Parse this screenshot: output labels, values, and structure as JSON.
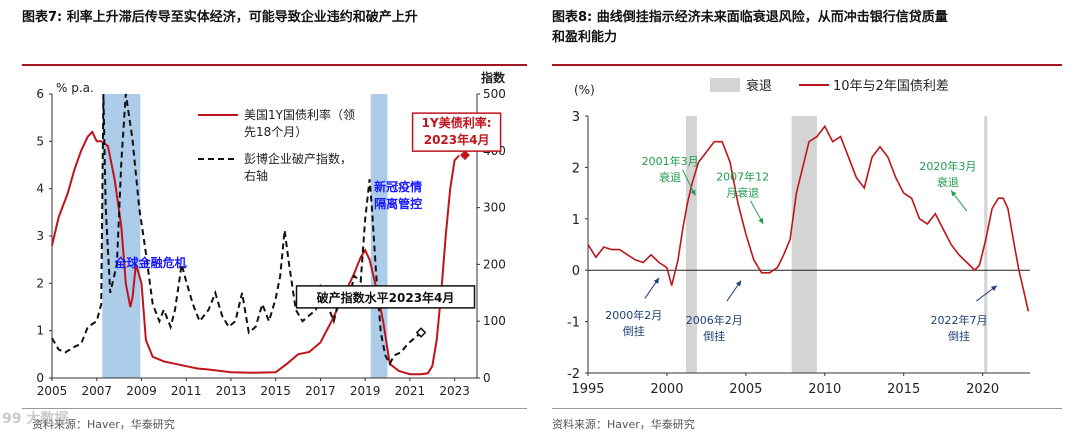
{
  "left": {
    "title": "图表7:  利率上升滞后传导至实体经济，可能导致企业违约和破产上升",
    "source": "资料来源：Haver，华泰研究",
    "watermark": "99 大数据",
    "chart_data": {
      "type": "line",
      "ylabel_left": "% p.a.",
      "ylabel_right": "指数",
      "ylim_left": [
        0,
        6
      ],
      "ylim_right": [
        0,
        500
      ],
      "yticks_left": [
        "0",
        "1",
        "2",
        "3",
        "4",
        "5",
        "6"
      ],
      "yticks_right": [
        "0",
        "100",
        "200",
        "300",
        "400",
        "500"
      ],
      "xlim": [
        2005,
        2024
      ],
      "xticks": [
        "2005",
        "2007",
        "2009",
        "2011",
        "2013",
        "2015",
        "2017",
        "2019",
        "2021",
        "2023"
      ],
      "shaded_periods": [
        [
          2007.25,
          2008.95
        ],
        [
          2019.25,
          2020.0
        ]
      ],
      "series": [
        {
          "name": "美国1Y国债利率（领先18个月）",
          "axis": "left",
          "color": "#c0141c",
          "x": [
            2005.0,
            2005.3,
            2005.7,
            2006.0,
            2006.3,
            2006.6,
            2006.8,
            2007.0,
            2007.2,
            2007.35,
            2007.5,
            2007.8,
            2008.1,
            2008.3,
            2008.5,
            2008.6,
            2008.75,
            2009.0,
            2009.2,
            2009.5,
            2010.0,
            2010.5,
            2011.0,
            2011.5,
            2012.0,
            2012.5,
            2013.0,
            2014.0,
            2015.0,
            2015.5,
            2016.0,
            2016.5,
            2017.0,
            2017.5,
            2018.0,
            2018.5,
            2018.8,
            2019.0,
            2019.2,
            2019.5,
            2019.8,
            2020.1,
            2020.5,
            2021.0,
            2021.5,
            2021.8,
            2022.0,
            2022.2,
            2022.4,
            2022.6,
            2022.8,
            2023.0,
            2023.2
          ],
          "values": [
            2.8,
            3.4,
            3.9,
            4.4,
            4.8,
            5.1,
            5.2,
            5.0,
            5.0,
            4.95,
            4.9,
            4.2,
            3.2,
            2.0,
            1.5,
            1.7,
            2.4,
            2.0,
            0.8,
            0.45,
            0.35,
            0.3,
            0.25,
            0.2,
            0.18,
            0.15,
            0.12,
            0.11,
            0.12,
            0.3,
            0.5,
            0.55,
            0.75,
            1.2,
            1.7,
            2.2,
            2.55,
            2.7,
            2.5,
            1.9,
            1.2,
            0.3,
            0.15,
            0.08,
            0.08,
            0.1,
            0.25,
            0.8,
            1.8,
            3.0,
            4.0,
            4.6,
            4.7
          ]
        },
        {
          "name": "彭博企业破产指数，右轴",
          "axis": "right",
          "color": "#111111",
          "dash": true,
          "x": [
            2005.0,
            2005.3,
            2005.6,
            2006.0,
            2006.3,
            2006.6,
            2007.0,
            2007.2,
            2007.3,
            2007.4,
            2007.6,
            2007.9,
            2008.1,
            2008.3,
            2008.6,
            2008.9,
            2009.2,
            2009.5,
            2009.8,
            2010.0,
            2010.3,
            2010.5,
            2010.8,
            2011.0,
            2011.3,
            2011.6,
            2012.0,
            2012.3,
            2012.6,
            2012.9,
            2013.2,
            2013.5,
            2013.8,
            2014.1,
            2014.4,
            2014.7,
            2015.0,
            2015.2,
            2015.4,
            2015.6,
            2015.9,
            2016.2,
            2016.5,
            2016.8,
            2017.0,
            2017.3,
            2017.6,
            2017.9,
            2018.2,
            2018.5,
            2018.8,
            2019.0,
            2019.2,
            2019.3,
            2019.5,
            2019.7,
            2019.9,
            2020.1,
            2020.3,
            2020.6,
            2020.9,
            2021.2,
            2021.5
          ],
          "values": [
            70,
            50,
            45,
            55,
            60,
            90,
            100,
            130,
            500,
            300,
            150,
            200,
            380,
            500,
            420,
            300,
            220,
            130,
            100,
            120,
            90,
            120,
            200,
            170,
            130,
            100,
            120,
            150,
            110,
            90,
            100,
            150,
            80,
            90,
            130,
            100,
            140,
            180,
            260,
            200,
            120,
            100,
            110,
            120,
            160,
            130,
            100,
            150,
            120,
            180,
            170,
            280,
            350,
            300,
            180,
            80,
            40,
            25,
            40,
            45,
            60,
            70,
            80
          ]
        }
      ],
      "annotations": [
        {
          "text": "全球金融危机",
          "x": 2007.8,
          "y": 2.35
        },
        {
          "text": "新冠疫情",
          "lines": [
            "新冠疫情",
            "隔离管控"
          ],
          "x": 2019.4,
          "y": 3.95
        },
        {
          "text": "1Y美债利率:",
          "lines": [
            "1Y美债利率:",
            "2023年4月"
          ],
          "x": 2021.3,
          "y": 5.3
        },
        {
          "text": "破产指数水平2023年4月",
          "x": 2016.2,
          "y": 1.65
        }
      ],
      "legend": [
        "美国1Y国债利率（领",
        "先18个月）",
        "彭博企业破产指数，",
        "右轴"
      ]
    }
  },
  "right": {
    "title_line1": "图表8:  曲线倒挂指示经济未来面临衰退风险，从而冲击银行信贷质量",
    "title_line2": "和盈利能力",
    "source": "资料来源：Haver，华泰研究",
    "chart_data": {
      "type": "line",
      "ylabel": "(%)",
      "ylim": [
        -2,
        3
      ],
      "yticks": [
        "-2",
        "-1",
        "0",
        "1",
        "2",
        "3"
      ],
      "xlim": [
        1995,
        2023
      ],
      "xticks": [
        "1995",
        "2000",
        "2005",
        "2010",
        "2015",
        "2020"
      ],
      "legend": [
        "衰退",
        "10年与2年国债利差"
      ],
      "recessions": [
        [
          2001.2,
          2001.9
        ],
        [
          2007.9,
          2009.5
        ],
        [
          2020.1,
          2020.3
        ]
      ],
      "series": [
        {
          "name": "10年与2年国债利差",
          "color": "#c0141c",
          "x": [
            1995.0,
            1995.5,
            1996.0,
            1996.5,
            1997.0,
            1997.5,
            1998.0,
            1998.5,
            1999.0,
            1999.5,
            2000.0,
            2000.3,
            2000.7,
            2001.0,
            2001.3,
            2001.6,
            2002.0,
            2002.5,
            2003.0,
            2003.5,
            2004.0,
            2004.5,
            2005.0,
            2005.5,
            2006.0,
            2006.5,
            2007.0,
            2007.4,
            2007.8,
            2008.2,
            2008.6,
            2009.0,
            2009.5,
            2010.0,
            2010.5,
            2011.0,
            2011.5,
            2012.0,
            2012.5,
            2013.0,
            2013.5,
            2014.0,
            2014.5,
            2015.0,
            2015.5,
            2016.0,
            2016.5,
            2017.0,
            2017.5,
            2018.0,
            2018.5,
            2019.0,
            2019.5,
            2019.8,
            2020.2,
            2020.6,
            2021.0,
            2021.3,
            2021.6,
            2022.0,
            2022.3,
            2022.6,
            2022.9
          ],
          "values": [
            0.5,
            0.25,
            0.45,
            0.4,
            0.4,
            0.3,
            0.2,
            0.15,
            0.3,
            0.15,
            0.05,
            -0.3,
            0.2,
            0.8,
            1.3,
            1.7,
            2.1,
            2.3,
            2.5,
            2.5,
            2.1,
            1.3,
            0.7,
            0.2,
            -0.05,
            -0.05,
            0.05,
            0.3,
            0.6,
            1.5,
            2.0,
            2.5,
            2.6,
            2.8,
            2.5,
            2.6,
            2.2,
            1.8,
            1.6,
            2.2,
            2.4,
            2.2,
            1.8,
            1.5,
            1.4,
            1.0,
            0.9,
            1.1,
            0.8,
            0.5,
            0.3,
            0.15,
            0.0,
            0.1,
            0.6,
            1.2,
            1.4,
            1.4,
            1.2,
            0.5,
            0.0,
            -0.4,
            -0.8
          ]
        }
      ],
      "annotations": [
        {
          "lines": [
            "2001年3月",
            "衰退"
          ],
          "x": 2000.2,
          "y": 2.05
        },
        {
          "lines": [
            "2007年12",
            "月衰退"
          ],
          "x": 2004.8,
          "y": 1.75
        },
        {
          "lines": [
            "2020年3月",
            "衰退"
          ],
          "x": 2017.8,
          "y": 1.95
        },
        {
          "lines": [
            "2000年2月",
            "倒挂"
          ],
          "x": 1997.9,
          "y": -0.95
        },
        {
          "lines": [
            "2006年2月",
            "倒挂"
          ],
          "x": 2003.0,
          "y": -1.05
        },
        {
          "lines": [
            "2022年7月",
            "倒挂"
          ],
          "x": 2018.5,
          "y": -1.05
        }
      ]
    }
  }
}
